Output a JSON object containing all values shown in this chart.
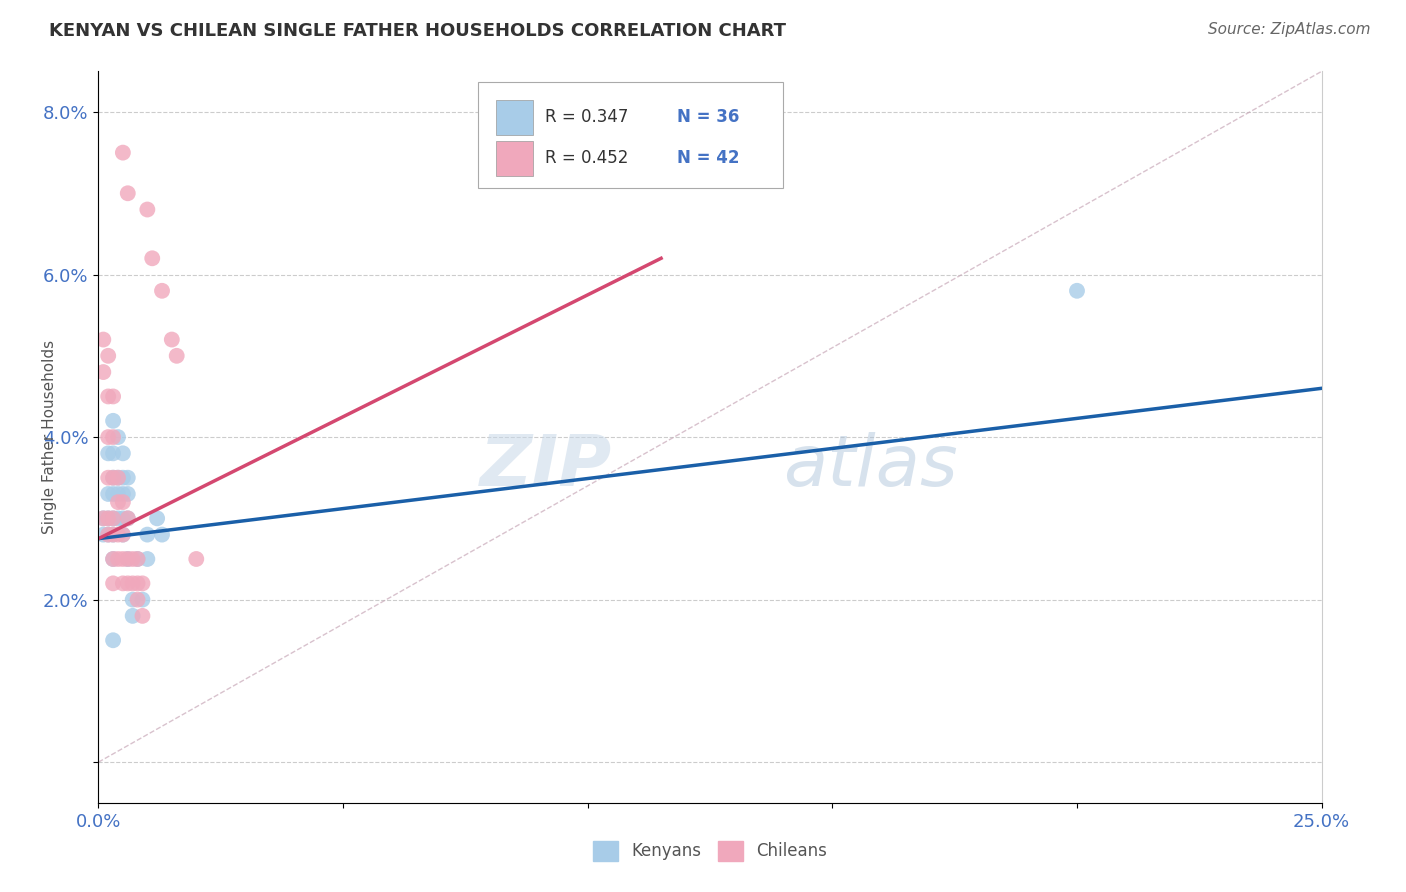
{
  "title": "KENYAN VS CHILEAN SINGLE FATHER HOUSEHOLDS CORRELATION CHART",
  "source": "Source: ZipAtlas.com",
  "ylabel": "Single Father Households",
  "xlim": [
    0.0,
    0.25
  ],
  "ylim": [
    -0.005,
    0.085
  ],
  "ytick_vals": [
    0.0,
    0.02,
    0.04,
    0.06,
    0.08
  ],
  "ytick_labels": [
    "",
    "2.0%",
    "4.0%",
    "6.0%",
    "8.0%"
  ],
  "xtick_vals": [
    0.0,
    0.05,
    0.1,
    0.15,
    0.2,
    0.25
  ],
  "xtick_labels": [
    "0.0%",
    "",
    "",
    "",
    "",
    "25.0%"
  ],
  "legend_R_kenya": "R = 0.347",
  "legend_N_kenya": "N = 36",
  "legend_R_chile": "R = 0.452",
  "legend_N_chile": "N = 42",
  "kenya_color": "#a8cce8",
  "chile_color": "#f0a8bc",
  "kenya_line_color": "#1a5fa8",
  "chile_line_color": "#d44870",
  "diagonal_color": "#c8a8b8",
  "background_color": "#ffffff",
  "watermark_zip": "ZIP",
  "watermark_atlas": "atlas",
  "kenya_points": [
    [
      0.001,
      0.03
    ],
    [
      0.001,
      0.028
    ],
    [
      0.002,
      0.038
    ],
    [
      0.002,
      0.033
    ],
    [
      0.002,
      0.03
    ],
    [
      0.002,
      0.028
    ],
    [
      0.003,
      0.042
    ],
    [
      0.003,
      0.038
    ],
    [
      0.003,
      0.035
    ],
    [
      0.003,
      0.033
    ],
    [
      0.003,
      0.03
    ],
    [
      0.003,
      0.028
    ],
    [
      0.003,
      0.025
    ],
    [
      0.004,
      0.04
    ],
    [
      0.004,
      0.035
    ],
    [
      0.004,
      0.033
    ],
    [
      0.004,
      0.03
    ],
    [
      0.005,
      0.038
    ],
    [
      0.005,
      0.035
    ],
    [
      0.005,
      0.033
    ],
    [
      0.005,
      0.03
    ],
    [
      0.005,
      0.028
    ],
    [
      0.006,
      0.035
    ],
    [
      0.006,
      0.033
    ],
    [
      0.006,
      0.03
    ],
    [
      0.006,
      0.025
    ],
    [
      0.007,
      0.02
    ],
    [
      0.007,
      0.018
    ],
    [
      0.008,
      0.025
    ],
    [
      0.009,
      0.02
    ],
    [
      0.01,
      0.028
    ],
    [
      0.01,
      0.025
    ],
    [
      0.012,
      0.03
    ],
    [
      0.013,
      0.028
    ],
    [
      0.2,
      0.058
    ],
    [
      0.003,
      0.015
    ]
  ],
  "chile_points": [
    [
      0.001,
      0.052
    ],
    [
      0.001,
      0.048
    ],
    [
      0.001,
      0.03
    ],
    [
      0.002,
      0.05
    ],
    [
      0.002,
      0.045
    ],
    [
      0.002,
      0.04
    ],
    [
      0.002,
      0.035
    ],
    [
      0.002,
      0.03
    ],
    [
      0.002,
      0.028
    ],
    [
      0.003,
      0.045
    ],
    [
      0.003,
      0.04
    ],
    [
      0.003,
      0.035
    ],
    [
      0.003,
      0.03
    ],
    [
      0.003,
      0.028
    ],
    [
      0.003,
      0.025
    ],
    [
      0.003,
      0.022
    ],
    [
      0.004,
      0.035
    ],
    [
      0.004,
      0.032
    ],
    [
      0.004,
      0.028
    ],
    [
      0.004,
      0.025
    ],
    [
      0.005,
      0.032
    ],
    [
      0.005,
      0.028
    ],
    [
      0.005,
      0.025
    ],
    [
      0.005,
      0.022
    ],
    [
      0.006,
      0.03
    ],
    [
      0.006,
      0.025
    ],
    [
      0.006,
      0.022
    ],
    [
      0.007,
      0.025
    ],
    [
      0.007,
      0.022
    ],
    [
      0.008,
      0.025
    ],
    [
      0.008,
      0.022
    ],
    [
      0.008,
      0.02
    ],
    [
      0.009,
      0.022
    ],
    [
      0.009,
      0.018
    ],
    [
      0.01,
      0.068
    ],
    [
      0.011,
      0.062
    ],
    [
      0.013,
      0.058
    ],
    [
      0.015,
      0.052
    ],
    [
      0.016,
      0.05
    ],
    [
      0.02,
      0.025
    ],
    [
      0.005,
      0.075
    ],
    [
      0.006,
      0.07
    ]
  ],
  "kenya_line_x": [
    0.0,
    0.25
  ],
  "kenya_line_y": [
    0.0275,
    0.046
  ],
  "chile_line_x": [
    0.0,
    0.115
  ],
  "chile_line_y": [
    0.0275,
    0.062
  ],
  "diag_line_x": [
    0.0,
    0.25
  ],
  "diag_line_y": [
    0.0,
    0.085
  ]
}
